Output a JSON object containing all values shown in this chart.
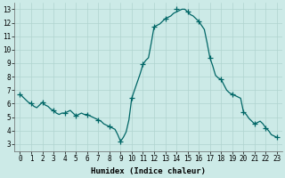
{
  "title": "",
  "xlabel": "Humidex (Indice chaleur)",
  "ylabel": "",
  "background_color": "#cceae7",
  "grid_color": "#b0d4d0",
  "line_color": "#006666",
  "marker_color": "#006666",
  "xlim": [
    -0.5,
    23.5
  ],
  "ylim": [
    2.5,
    13.5
  ],
  "yticks": [
    3,
    4,
    5,
    6,
    7,
    8,
    9,
    10,
    11,
    12,
    13
  ],
  "xticks": [
    0,
    1,
    2,
    3,
    4,
    5,
    6,
    7,
    8,
    9,
    10,
    11,
    12,
    13,
    14,
    15,
    16,
    17,
    18,
    19,
    20,
    21,
    22,
    23
  ],
  "x": [
    0,
    0.25,
    0.5,
    0.75,
    1,
    1.25,
    1.5,
    1.75,
    2,
    2.25,
    2.5,
    2.75,
    3,
    3.25,
    3.5,
    3.75,
    4,
    4.25,
    4.5,
    4.75,
    5,
    5.25,
    5.5,
    5.75,
    6,
    6.25,
    6.5,
    6.75,
    7,
    7.25,
    7.5,
    7.75,
    8,
    8.25,
    8.5,
    8.75,
    9,
    9.25,
    9.5,
    9.75,
    10,
    10.25,
    10.5,
    10.75,
    11,
    11.25,
    11.5,
    11.75,
    12,
    12.25,
    12.5,
    12.75,
    13,
    13.25,
    13.5,
    13.75,
    14,
    14.25,
    14.5,
    14.75,
    15,
    15.25,
    15.5,
    15.75,
    16,
    16.25,
    16.5,
    16.75,
    17,
    17.25,
    17.5,
    17.75,
    18,
    18.25,
    18.5,
    18.75,
    19,
    19.25,
    19.5,
    19.75,
    20,
    20.25,
    20.5,
    20.75,
    21,
    21.25,
    21.5,
    21.75,
    22,
    22.25,
    22.5,
    22.75,
    23
  ],
  "y": [
    6.7,
    6.5,
    6.3,
    6.1,
    6.0,
    5.8,
    5.7,
    5.9,
    6.1,
    5.9,
    5.8,
    5.6,
    5.5,
    5.3,
    5.2,
    5.3,
    5.3,
    5.4,
    5.5,
    5.3,
    5.1,
    5.2,
    5.3,
    5.2,
    5.2,
    5.1,
    5.0,
    4.9,
    4.8,
    4.7,
    4.5,
    4.4,
    4.3,
    4.2,
    4.1,
    3.7,
    3.2,
    3.5,
    3.9,
    4.8,
    6.4,
    7.0,
    7.6,
    8.2,
    8.9,
    9.2,
    9.4,
    10.5,
    11.7,
    11.8,
    11.9,
    12.1,
    12.3,
    12.4,
    12.5,
    12.7,
    12.8,
    12.9,
    13.0,
    13.0,
    12.8,
    12.6,
    12.5,
    12.3,
    12.1,
    11.8,
    11.5,
    10.5,
    9.4,
    8.8,
    8.1,
    7.9,
    7.8,
    7.4,
    7.0,
    6.8,
    6.7,
    6.6,
    6.5,
    6.4,
    5.4,
    5.2,
    4.9,
    4.7,
    4.5,
    4.6,
    4.7,
    4.5,
    4.2,
    4.0,
    3.7,
    3.6,
    3.5
  ],
  "marker_x": [
    0,
    1,
    2,
    3,
    4,
    5,
    6,
    7,
    8,
    9,
    10,
    11,
    12,
    13,
    14,
    15,
    16,
    17,
    18,
    19,
    20,
    21,
    22,
    23
  ],
  "marker_y": [
    6.7,
    6.0,
    6.1,
    5.5,
    5.3,
    5.1,
    5.2,
    4.8,
    4.3,
    3.2,
    6.4,
    8.9,
    11.7,
    12.3,
    13.0,
    12.8,
    12.1,
    9.4,
    7.8,
    6.7,
    5.4,
    4.5,
    4.2,
    3.5
  ]
}
